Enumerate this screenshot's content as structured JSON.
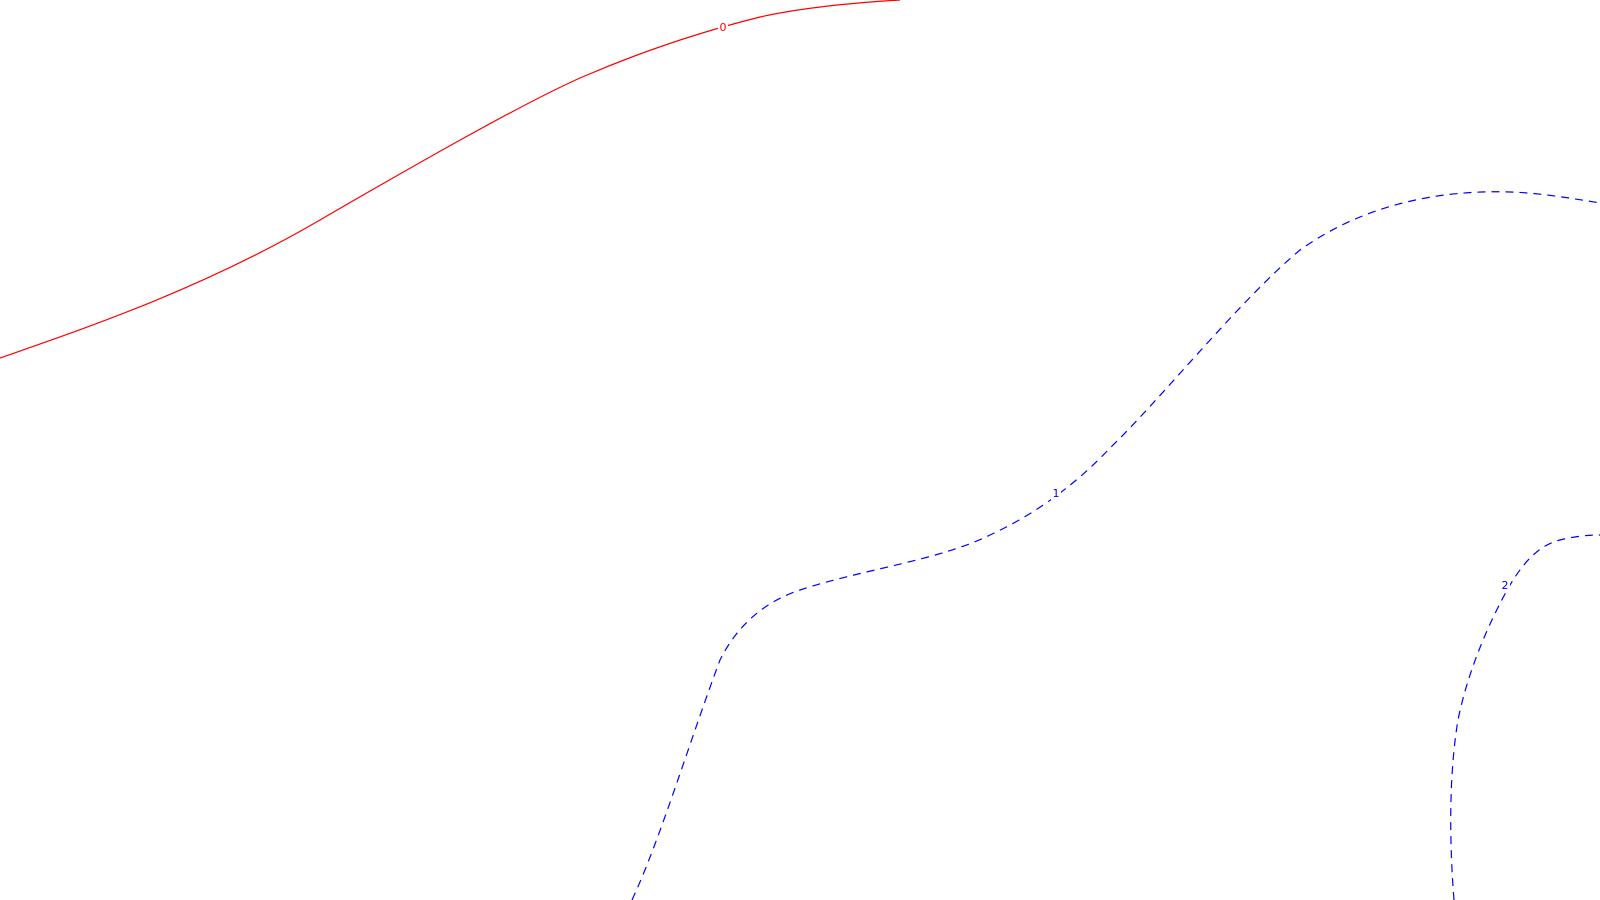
{
  "contours": [
    {
      "id": "contour-0",
      "label": "0",
      "color": "#ff0000",
      "line_style": "solid"
    },
    {
      "id": "contour-1",
      "label": "1",
      "color": "#0000ff",
      "line_style": "dashed"
    },
    {
      "id": "contour-2",
      "label": "2",
      "color": "#0000ff",
      "line_style": "dashed"
    }
  ]
}
